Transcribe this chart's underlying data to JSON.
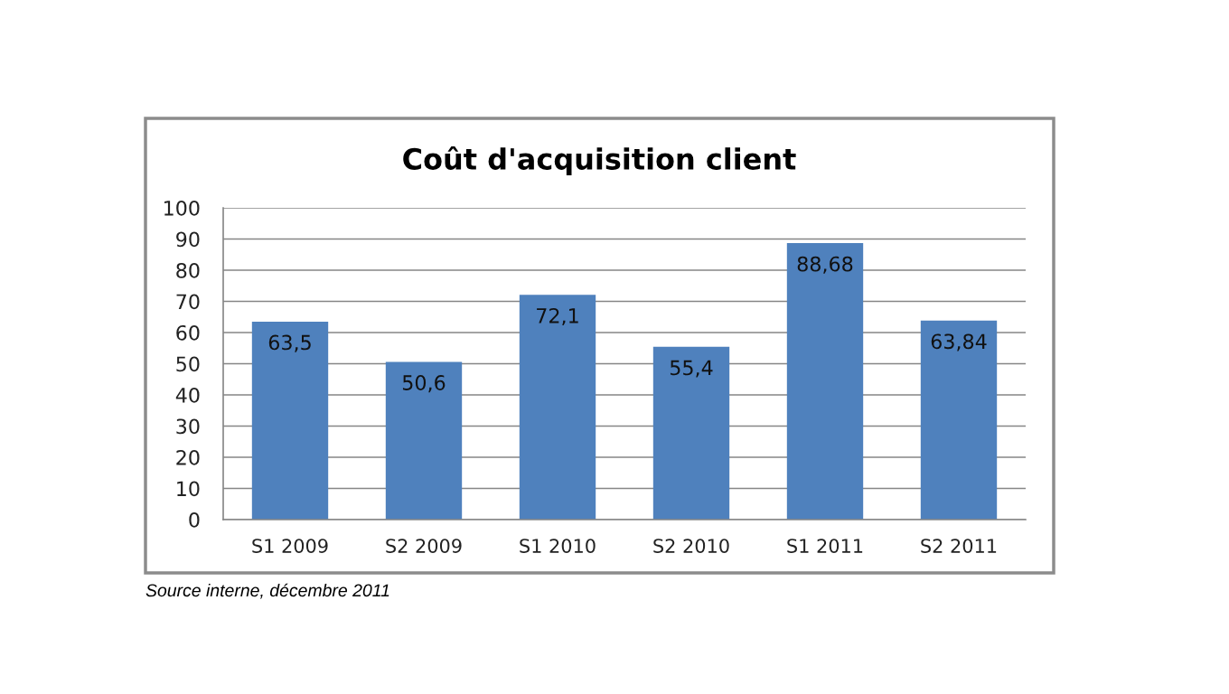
{
  "chart_data": {
    "type": "bar",
    "title": "Coût d'acquisition client",
    "categories": [
      "S1 2009",
      "S2 2009",
      "S1 2010",
      "S2 2010",
      "S1 2011",
      "S2 2011"
    ],
    "values": [
      63.5,
      50.6,
      72.1,
      55.4,
      88.68,
      63.84
    ],
    "value_labels": [
      "63,5",
      "50,6",
      "72,1",
      "55,4",
      "88,68",
      "63,84"
    ],
    "color": "#4f81bd",
    "ylim": [
      0,
      100
    ],
    "yticks": [
      0,
      10,
      20,
      30,
      40,
      50,
      60,
      70,
      80,
      90,
      100
    ],
    "grid": "y",
    "annotations": [
      "Source interne, décembre 2011"
    ]
  }
}
